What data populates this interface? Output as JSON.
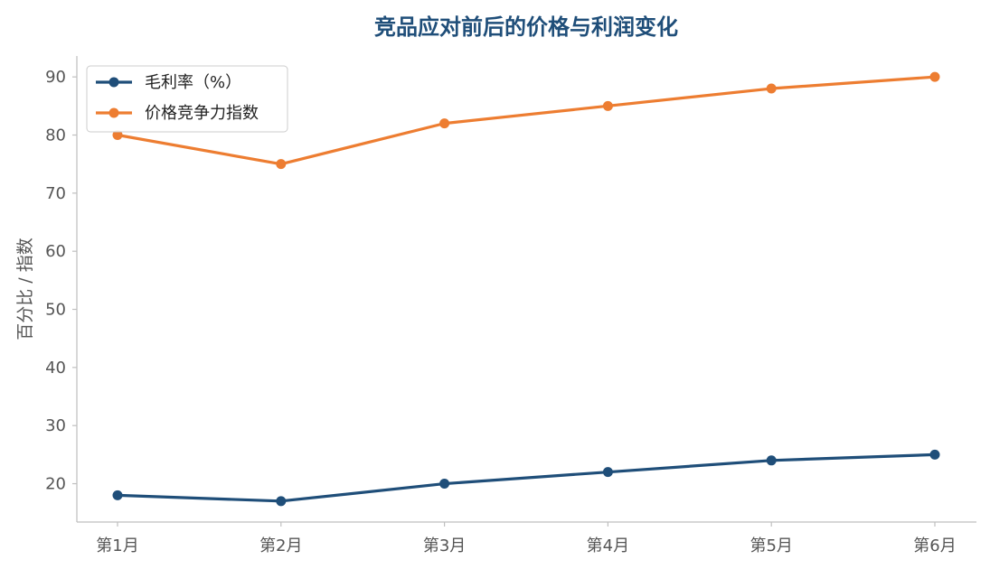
{
  "colors": {
    "title": "#1f4e79",
    "gross_margin": "#1f4e79",
    "price_index": "#ed7d31",
    "axis": "#bfbfbf",
    "tick_text": "#555555"
  },
  "chart_data": {
    "type": "line",
    "title": "竞品应对前后的价格与利润变化",
    "xlabel": "",
    "ylabel": "百分比 / 指数",
    "categories": [
      "第1月",
      "第2月",
      "第3月",
      "第4月",
      "第5月",
      "第6月"
    ],
    "series": [
      {
        "name": "毛利率（%）",
        "values": [
          18,
          17,
          20,
          22,
          24,
          25
        ],
        "color": "#1f4e79",
        "marker": "circle"
      },
      {
        "name": "价格竞争力指数",
        "values": [
          80,
          75,
          82,
          85,
          88,
          90
        ],
        "color": "#ed7d31",
        "marker": "circle"
      }
    ],
    "ylim": [
      13.4,
      93.6
    ],
    "yticks": [
      20,
      30,
      40,
      50,
      60,
      70,
      80,
      90
    ],
    "grid": false,
    "legend_position": "top-left"
  }
}
